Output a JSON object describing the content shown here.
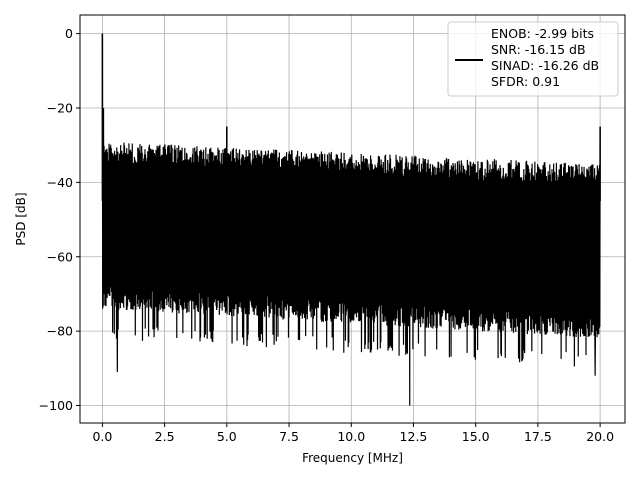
{
  "chart_data": {
    "type": "line",
    "title": "",
    "xlabel": "Frequency [MHz]",
    "ylabel": "PSD [dB]",
    "xlim": [
      -0.9,
      21.0
    ],
    "ylim": [
      -104.7,
      5.0
    ],
    "xticks": [
      0.0,
      2.5,
      5.0,
      7.5,
      10.0,
      12.5,
      15.0,
      17.5,
      20.0
    ],
    "xtick_labels": [
      "0.0",
      "2.5",
      "5.0",
      "7.5",
      "10.0",
      "12.5",
      "15.0",
      "17.5",
      "20.0"
    ],
    "yticks": [
      0,
      -20,
      -40,
      -60,
      -80,
      -100
    ],
    "ytick_labels": [
      "0",
      "−20",
      "−40",
      "−60",
      "−80",
      "−100"
    ],
    "grid": true,
    "legend_position": "top-right",
    "legend_lines": [
      "ENOB: -2.99 bits",
      "SNR: -16.15 dB",
      "SINAD: -16.26 dB",
      "SFDR: 0.91"
    ],
    "series_color": "#000000",
    "noise_floor": {
      "x_range": [
        0.0,
        20.0
      ],
      "upper_envelope_db": [
        -29,
        -35
      ],
      "lower_envelope_db": [
        -68,
        -76
      ],
      "typical_min_db": [
        -78,
        -86
      ]
    },
    "peaks": [
      {
        "x": 0.0,
        "y": 0
      },
      {
        "x": 0.04,
        "y": -20
      },
      {
        "x": 5.0,
        "y": -25
      },
      {
        "x": 20.0,
        "y": -25
      }
    ],
    "notable_minima": [
      {
        "x": 0.6,
        "y": -91
      },
      {
        "x": 12.35,
        "y": -100
      },
      {
        "x": 19.8,
        "y": -92
      }
    ]
  }
}
